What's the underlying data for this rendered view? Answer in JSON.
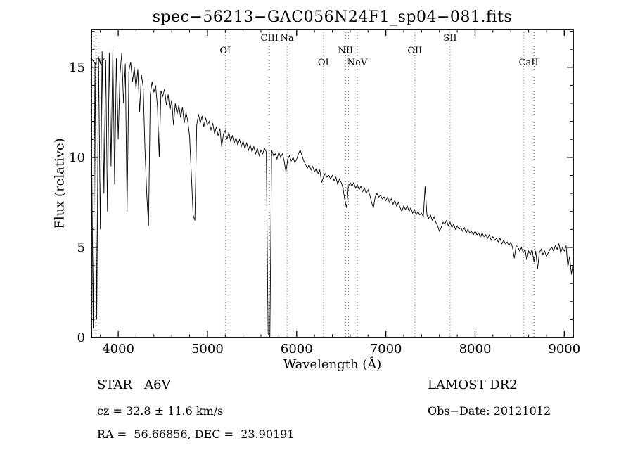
{
  "chart_data": {
    "type": "line",
    "title": "spec−56213−GAC056N24F1_sp04−081.fits",
    "xlabel": "Wavelength (Å)",
    "ylabel": "Flux (relative)",
    "xlim": [
      3700,
      9100
    ],
    "ylim": [
      0,
      17.1
    ],
    "x_ticks": [
      4000,
      5000,
      6000,
      7000,
      8000,
      9000
    ],
    "y_ticks": [
      0,
      5,
      10,
      15
    ],
    "x_minor_step": 200,
    "y_minor_step": 1,
    "grid": false,
    "legend": "none",
    "x_start": 3700,
    "x_step": 20,
    "flux": [
      12.0,
      0.5,
      15.3,
      1.0,
      15.6,
      6.0,
      15.9,
      8.0,
      15.4,
      7.0,
      15.8,
      9.5,
      16.0,
      8.5,
      15.5,
      11.0,
      14.6,
      15.8,
      13.0,
      15.2,
      7.0,
      14.8,
      15.3,
      14.2,
      15.0,
      13.8,
      14.9,
      12.5,
      14.6,
      13.9,
      10.5,
      8.0,
      6.2,
      13.5,
      14.2,
      13.6,
      14.0,
      12.8,
      10.0,
      13.7,
      13.4,
      13.8,
      12.9,
      13.5,
      12.6,
      13.2,
      11.8,
      13.0,
      12.4,
      12.9,
      12.2,
      12.8,
      11.9,
      12.5,
      12.0,
      11.2,
      9.0,
      6.8,
      6.5,
      11.8,
      12.4,
      11.9,
      12.3,
      11.7,
      12.2,
      11.8,
      12.0,
      11.5,
      11.9,
      11.3,
      11.7,
      11.2,
      11.6,
      10.6,
      11.3,
      11.5,
      11.0,
      11.4,
      10.9,
      11.2,
      10.8,
      11.1,
      10.7,
      11.0,
      10.6,
      10.9,
      10.5,
      10.8,
      10.4,
      10.7,
      10.3,
      10.6,
      10.2,
      10.5,
      10.1,
      10.4,
      10.2,
      10.5,
      10.3,
      0.2,
      0.0,
      10.4,
      10.1,
      10.2,
      9.9,
      10.3,
      10.0,
      10.2,
      9.8,
      9.2,
      9.9,
      10.1,
      9.8,
      10.0,
      9.7,
      9.9,
      10.2,
      10.4,
      10.1,
      9.8,
      9.6,
      9.4,
      9.6,
      9.3,
      9.5,
      9.2,
      9.4,
      9.1,
      9.3,
      8.6,
      8.9,
      9.1,
      8.9,
      9.0,
      8.8,
      9.0,
      8.7,
      8.9,
      8.5,
      8.8,
      8.6,
      8.3,
      7.6,
      7.2,
      8.4,
      8.6,
      8.4,
      8.6,
      8.3,
      8.5,
      8.2,
      8.4,
      8.1,
      8.3,
      8.0,
      8.2,
      7.9,
      7.5,
      7.2,
      7.8,
      8.0,
      7.8,
      7.9,
      7.7,
      7.8,
      7.6,
      7.8,
      7.5,
      7.7,
      7.4,
      7.6,
      7.3,
      7.5,
      7.2,
      7.0,
      7.3,
      7.1,
      7.3,
      7.0,
      7.2,
      6.9,
      7.1,
      6.8,
      7.0,
      6.8,
      6.9,
      6.7,
      8.4,
      6.8,
      6.6,
      6.8,
      6.5,
      6.7,
      6.4,
      6.2,
      5.9,
      6.1,
      6.4,
      6.3,
      6.5,
      6.2,
      6.4,
      6.1,
      6.3,
      6.0,
      6.2,
      6.0,
      6.1,
      5.9,
      6.1,
      5.8,
      6.0,
      5.8,
      5.9,
      5.7,
      5.9,
      5.7,
      5.8,
      5.6,
      5.8,
      5.6,
      5.7,
      5.5,
      5.7,
      5.4,
      5.6,
      5.4,
      5.5,
      5.3,
      5.5,
      5.2,
      5.4,
      5.2,
      5.3,
      5.1,
      5.3,
      5.0,
      4.4,
      5.1,
      5.0,
      4.8,
      5.0,
      4.7,
      4.9,
      4.3,
      4.8,
      4.6,
      4.9,
      4.2,
      4.8,
      3.8,
      4.7,
      4.9,
      4.6,
      4.8,
      4.5,
      4.7,
      4.9,
      5.0,
      4.8,
      5.1,
      4.9,
      5.2,
      4.7,
      5.0,
      4.8,
      5.1,
      3.9,
      4.5,
      3.5,
      4.2
    ],
    "marker_lines": [
      3727,
      3750,
      5200,
      5696,
      5892,
      6300,
      6548,
      6583,
      6680,
      7325,
      7720,
      8542,
      8662
    ],
    "marker_labels": [
      {
        "text": "NV",
        "wavelength": 3765,
        "row": 2
      },
      {
        "text": "OI",
        "wavelength": 5200,
        "row": 1
      },
      {
        "text": "CIII",
        "wavelength": 5696,
        "row": 0
      },
      {
        "text": "Na",
        "wavelength": 5892,
        "row": 0
      },
      {
        "text": "OI",
        "wavelength": 6300,
        "row": 2
      },
      {
        "text": "NII",
        "wavelength": 6548,
        "row": 1
      },
      {
        "text": "NeV",
        "wavelength": 6680,
        "row": 2
      },
      {
        "text": "OII",
        "wavelength": 7325,
        "row": 1
      },
      {
        "text": "SII",
        "wavelength": 7720,
        "row": 0
      },
      {
        "text": "CaII",
        "wavelength": 8600,
        "row": 2
      }
    ]
  },
  "annotations": {
    "class_line": "STAR   A6V",
    "survey": "LAMOST DR2",
    "cz_line": "cz = 32.8 ± 11.6 km/s",
    "obs_date": "Obs−Date: 20121012",
    "radec_line": "RA =  56.66856, DEC =  23.90191"
  },
  "colors": {
    "trace": "#000000",
    "marker_line": "#666666",
    "background": "#ffffff"
  }
}
